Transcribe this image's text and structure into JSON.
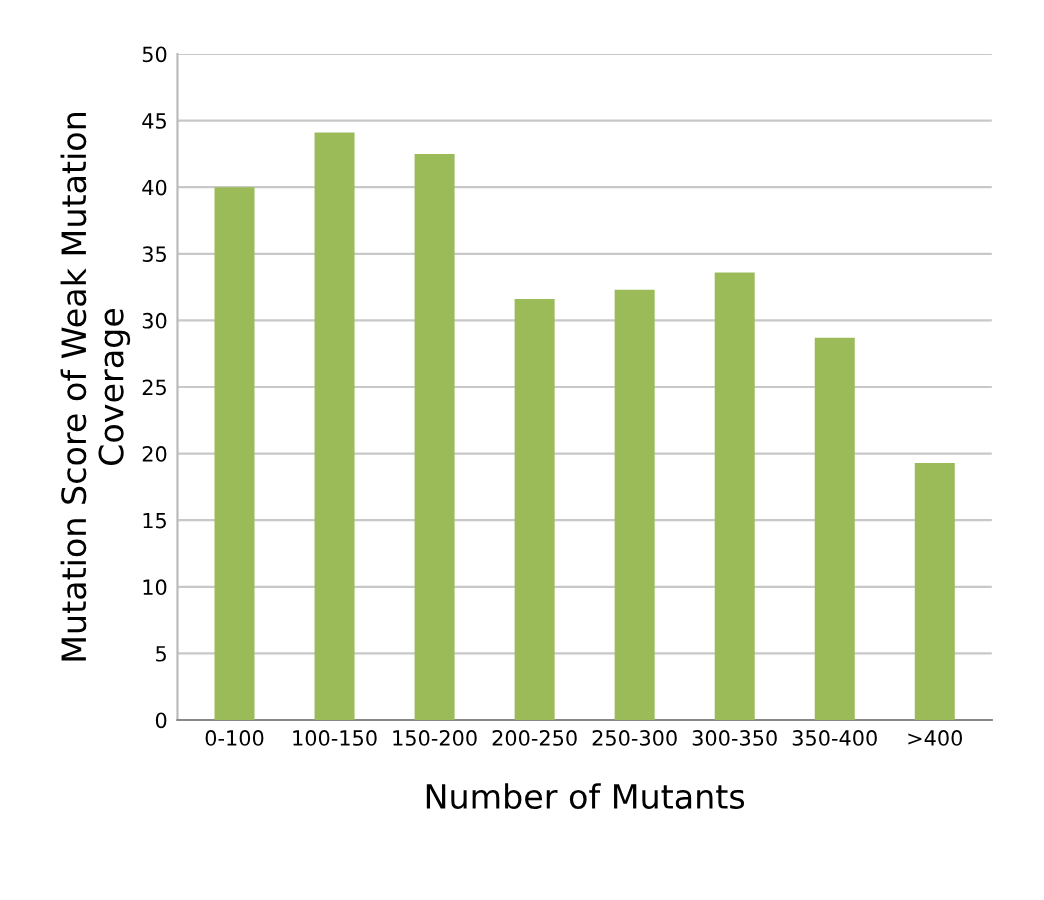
{
  "chart_data": {
    "type": "bar",
    "xlabel": "Number of Mutants",
    "ylabel": "Mutation Score of Weak Mutation\nCoverage",
    "categories": [
      "0-100",
      "100-150",
      "150-200",
      "200-250",
      "250-300",
      "300-350",
      "350-400",
      ">400"
    ],
    "values": [
      40.0,
      44.1,
      42.5,
      31.6,
      32.3,
      33.6,
      28.7,
      19.3
    ],
    "color": "#9bbb59",
    "ylim": [
      0,
      50
    ],
    "yticks": [
      0,
      5,
      10,
      15,
      20,
      25,
      30,
      35,
      40,
      45,
      50
    ],
    "grid": "y"
  }
}
